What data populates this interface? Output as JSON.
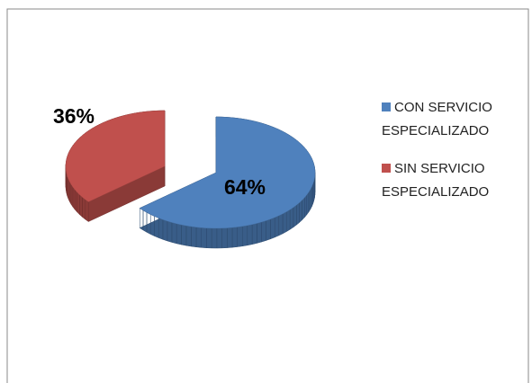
{
  "chart_data": {
    "type": "pie",
    "categories": [
      "CON SERVICIO ESPECIALIZADO",
      "SIN SERVICIO ESPECIALIZADO"
    ],
    "values": [
      64,
      36
    ],
    "value_labels": [
      "64%",
      "36%"
    ],
    "colors": [
      "#4f81bd",
      "#c0504d"
    ],
    "legend": "right"
  }
}
